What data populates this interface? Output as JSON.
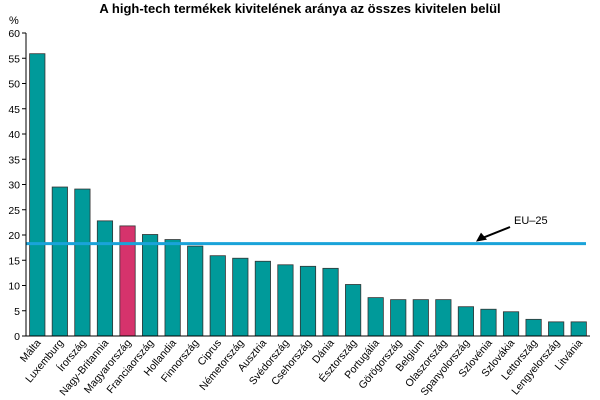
{
  "chart_data": {
    "type": "bar",
    "title": "A high-tech termékek kivitelének aránya az összes kivitelen belül",
    "ylabel": "%",
    "xlabel": "",
    "ylim": [
      0,
      60
    ],
    "yticks": [
      0,
      5,
      10,
      15,
      20,
      25,
      30,
      35,
      40,
      45,
      50,
      55,
      60
    ],
    "grid": false,
    "categories": [
      "Málta",
      "Luxemburg",
      "Írország",
      "Nagy-Britannia",
      "Magyarország",
      "Franciaország",
      "Hollandia",
      "Finnország",
      "Ciprus",
      "Németország",
      "Ausztria",
      "Svédország",
      "Csehország",
      "Dánia",
      "Észtország",
      "Portugália",
      "Görögország",
      "Belgium",
      "Olaszország",
      "Spanyolország",
      "Szlovénia",
      "Szlovákia",
      "Lettország",
      "Lengyelország",
      "Litvánia"
    ],
    "values": [
      55.9,
      29.5,
      29.1,
      22.8,
      21.8,
      20.1,
      19.1,
      17.8,
      15.9,
      15.4,
      14.8,
      14.1,
      13.8,
      13.4,
      10.2,
      7.6,
      7.2,
      7.2,
      7.2,
      5.8,
      5.3,
      4.8,
      3.3,
      2.8,
      2.8
    ],
    "bar_color": "#009a9a",
    "highlight": {
      "category": "Magyarország",
      "color": "#d6336c"
    },
    "reference_line": {
      "label": "EU–25",
      "value": 18.3,
      "color": "#1aa3d9"
    }
  }
}
